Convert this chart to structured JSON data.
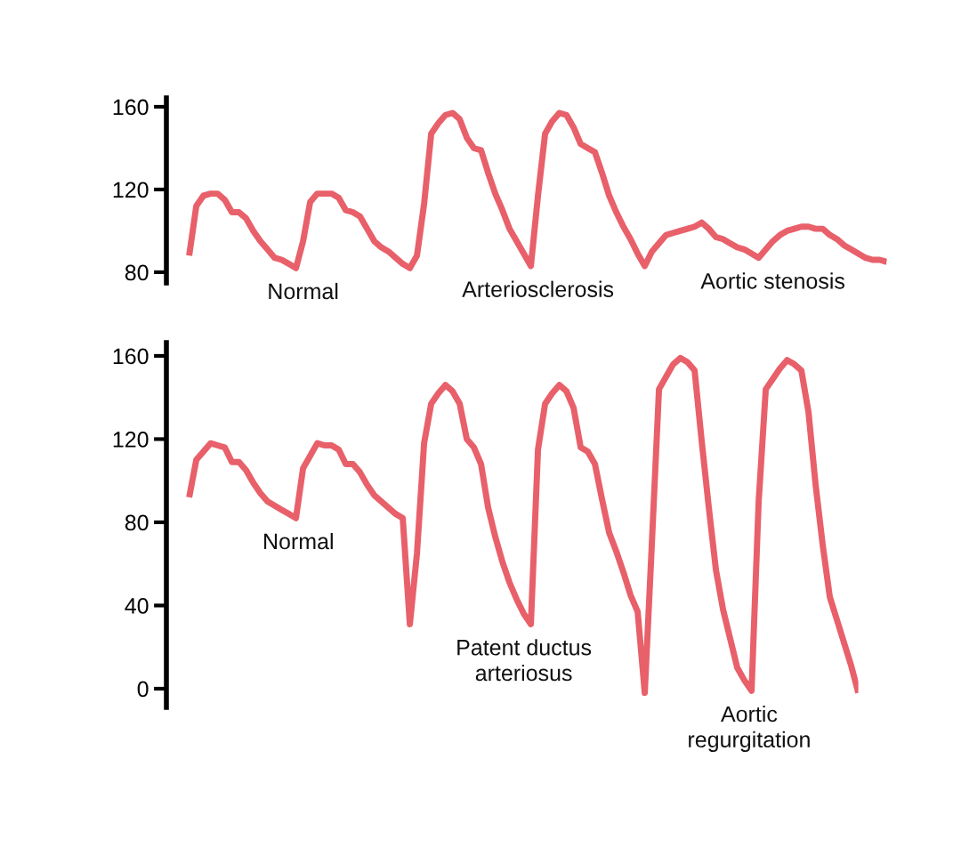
{
  "chart_data": [
    {
      "type": "line",
      "ylim": [
        74.8,
        164.3
      ],
      "yticks": [
        80,
        120,
        160
      ],
      "tick_labels": "y",
      "annotations": [
        "Normal",
        "Arteriosclerosis",
        "Aortic stenosis"
      ],
      "categories": [
        null,
        null,
        null,
        null,
        null,
        null,
        null,
        null,
        null,
        null,
        null,
        null,
        null,
        null,
        null,
        null,
        null,
        null,
        null,
        null,
        null,
        null,
        null,
        null,
        null,
        null,
        null,
        null,
        null,
        null,
        null,
        null,
        null,
        null,
        null,
        null,
        null,
        null,
        null,
        null,
        null,
        null,
        null,
        null,
        null,
        null,
        null,
        null,
        null,
        null,
        null,
        null,
        null,
        null,
        null,
        null,
        null,
        null,
        null,
        null,
        null,
        null,
        null,
        null,
        null,
        null,
        null,
        null,
        null,
        null,
        null,
        null,
        null,
        null,
        null,
        null,
        null,
        null,
        null,
        null,
        null,
        null,
        null,
        null,
        null,
        null,
        null,
        null,
        null,
        null,
        null,
        null,
        null,
        null,
        null,
        null,
        null,
        null,
        null
      ],
      "series": [
        {
          "color": "#e8606a",
          "values": [
            88,
            112,
            117,
            118,
            118,
            115,
            109,
            109,
            106,
            100,
            95,
            91,
            87,
            86,
            84,
            82,
            95,
            114,
            118,
            118,
            118,
            116,
            110,
            109,
            107,
            101,
            95,
            92,
            90,
            87,
            84,
            82,
            88,
            113,
            147,
            152,
            156,
            157,
            154,
            145,
            140,
            139,
            128,
            118,
            110,
            101,
            95,
            89,
            83,
            117,
            147,
            153,
            157,
            156,
            150,
            142,
            140,
            138,
            128,
            117,
            109,
            102,
            96,
            89,
            83,
            90,
            94,
            98,
            99,
            100,
            101,
            102,
            104,
            101,
            97,
            96,
            94,
            92,
            91,
            89,
            87,
            91,
            95,
            98,
            100,
            101,
            102,
            102,
            101,
            101,
            98,
            96,
            93,
            91,
            89,
            87,
            86,
            86,
            85
          ]
        }
      ]
    },
    {
      "type": "line",
      "ylim": [
        -9,
        166.4
      ],
      "yticks": [
        0,
        40,
        80,
        120,
        160
      ],
      "tick_labels": "y",
      "annotations": [
        "Normal",
        "Patent ductus\narteriosus",
        "Aortic\nregurgitation"
      ],
      "categories": [
        null,
        null,
        null,
        null,
        null,
        null,
        null,
        null,
        null,
        null,
        null,
        null,
        null,
        null,
        null,
        null,
        null,
        null,
        null,
        null,
        null,
        null,
        null,
        null,
        null,
        null,
        null,
        null,
        null,
        null,
        null,
        null,
        null,
        null,
        null,
        null,
        null,
        null,
        null,
        null,
        null,
        null,
        null,
        null,
        null,
        null,
        null,
        null,
        null,
        null,
        null,
        null,
        null,
        null,
        null,
        null,
        null,
        null,
        null,
        null,
        null,
        null,
        null,
        null,
        null,
        null,
        null,
        null,
        null,
        null,
        null,
        null,
        null,
        null,
        null,
        null,
        null,
        null,
        null,
        null,
        null,
        null,
        null,
        null,
        null,
        null,
        null,
        null,
        null,
        null,
        null,
        null,
        null,
        null,
        null
      ],
      "series": [
        {
          "color": "#e8606a",
          "values": [
            92,
            110,
            114,
            118,
            117,
            116,
            109,
            109,
            105,
            99,
            94,
            90,
            88,
            86,
            84,
            82,
            106,
            112,
            118,
            117,
            117,
            115,
            108,
            108,
            104,
            98,
            93,
            90,
            87,
            84,
            82,
            31,
            65,
            118,
            137,
            142,
            146,
            143,
            137,
            120,
            116,
            108,
            87,
            73,
            61,
            51,
            43,
            36,
            31,
            115,
            137,
            142,
            146,
            143,
            135,
            116,
            114,
            108,
            91,
            75,
            66,
            56,
            45,
            37,
            -2,
            70,
            144,
            150,
            156,
            159,
            157,
            153,
            119,
            87,
            57,
            38,
            24,
            10,
            4,
            -1,
            90,
            144,
            149,
            154,
            158,
            156,
            153,
            133,
            98,
            69,
            44,
            33,
            22,
            11,
            -2
          ]
        }
      ]
    }
  ]
}
